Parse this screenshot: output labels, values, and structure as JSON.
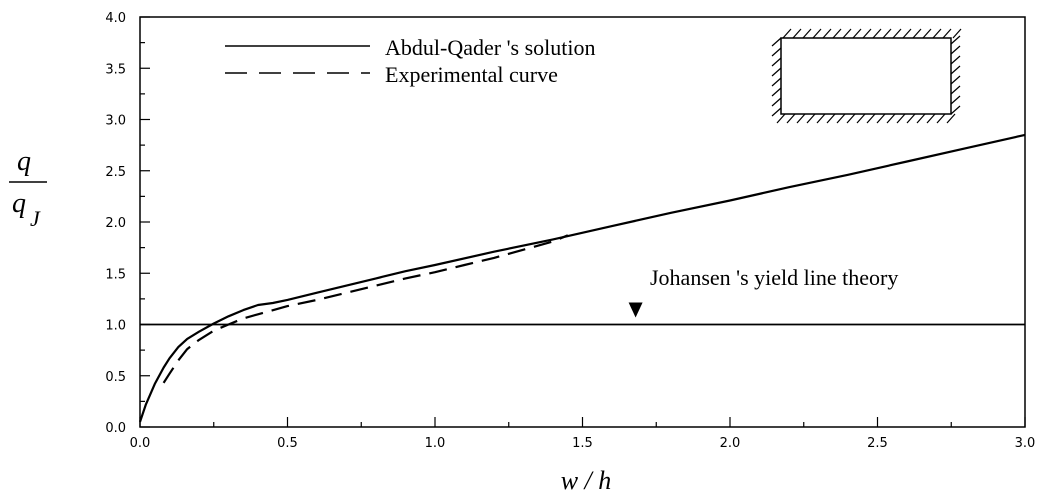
{
  "chart_data": {
    "type": "line",
    "title": "",
    "xlabel": "w / h",
    "ylabel_num": "q",
    "ylabel_den": "q",
    "ylabel_den_sub": "J",
    "xlim": [
      0.0,
      3.0
    ],
    "ylim": [
      0.0,
      4.0
    ],
    "x_ticks": [
      "0.0",
      "0.5",
      "1.0",
      "1.5",
      "2.0",
      "2.5",
      "3.0"
    ],
    "y_ticks": [
      "0.0",
      "0.5",
      "1.0",
      "1.5",
      "2.0",
      "2.5",
      "3.0",
      "3.5",
      "4.0"
    ],
    "grid": false,
    "legend_position": "top-left",
    "series": [
      {
        "name": "Abdul-Qader 's solution",
        "style": "solid",
        "x": [
          0.0,
          0.02,
          0.05,
          0.08,
          0.1,
          0.13,
          0.16,
          0.2,
          0.25,
          0.3,
          0.35,
          0.4,
          0.45,
          0.5,
          0.6,
          0.7,
          0.8,
          0.9,
          1.0,
          1.2,
          1.4,
          1.6,
          1.8,
          2.0,
          2.2,
          2.4,
          2.6,
          2.8,
          3.0
        ],
        "y": [
          0.05,
          0.22,
          0.42,
          0.58,
          0.67,
          0.78,
          0.86,
          0.93,
          1.01,
          1.08,
          1.14,
          1.19,
          1.21,
          1.24,
          1.31,
          1.38,
          1.45,
          1.52,
          1.58,
          1.71,
          1.83,
          1.96,
          2.09,
          2.21,
          2.34,
          2.46,
          2.59,
          2.72,
          2.85
        ]
      },
      {
        "name": "Experimental curve",
        "style": "dashed",
        "x": [
          0.08,
          0.1,
          0.13,
          0.16,
          0.2,
          0.25,
          0.3,
          0.35,
          0.4,
          0.5,
          0.6,
          0.7,
          0.8,
          0.9,
          1.0,
          1.1,
          1.2,
          1.3,
          1.4,
          1.45
        ],
        "y": [
          0.43,
          0.52,
          0.65,
          0.76,
          0.85,
          0.94,
          1.0,
          1.06,
          1.1,
          1.18,
          1.24,
          1.31,
          1.38,
          1.45,
          1.51,
          1.58,
          1.65,
          1.73,
          1.81,
          1.87
        ]
      }
    ],
    "reference_line": {
      "y": 1.0,
      "label": "Johansen 's  yield line theory",
      "arrow_x": 1.68
    }
  },
  "colors": {
    "line": "#000000",
    "background": "#ffffff"
  }
}
